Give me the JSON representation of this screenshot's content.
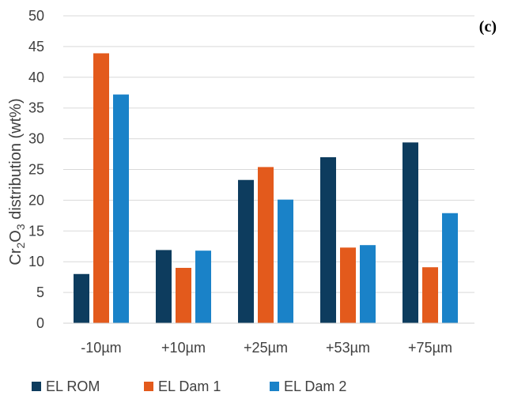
{
  "chart_data": {
    "type": "bar",
    "panel_label": "(c)",
    "categories": [
      "-10µm",
      "+10µm",
      "+25µm",
      "+53µm",
      "+75µm"
    ],
    "series": [
      {
        "name": "EL ROM",
        "color": "#0d3c5e",
        "values": [
          8.0,
          11.9,
          23.3,
          27.0,
          29.4
        ]
      },
      {
        "name": "EL Dam 1",
        "color": "#e35a1c",
        "values": [
          43.9,
          9.0,
          25.4,
          12.3,
          9.1
        ]
      },
      {
        "name": "EL Dam 2",
        "color": "#1a82c8",
        "values": [
          37.2,
          11.8,
          20.1,
          12.7,
          17.9
        ]
      }
    ],
    "ylabel_parts": [
      "Cr",
      "2",
      "O",
      "3",
      " distribution (wt%)"
    ],
    "ylim": [
      0,
      50
    ],
    "yticks": [
      0,
      5,
      10,
      15,
      20,
      25,
      30,
      35,
      40,
      45,
      50
    ],
    "grid": true,
    "legend_position": "bottom"
  }
}
